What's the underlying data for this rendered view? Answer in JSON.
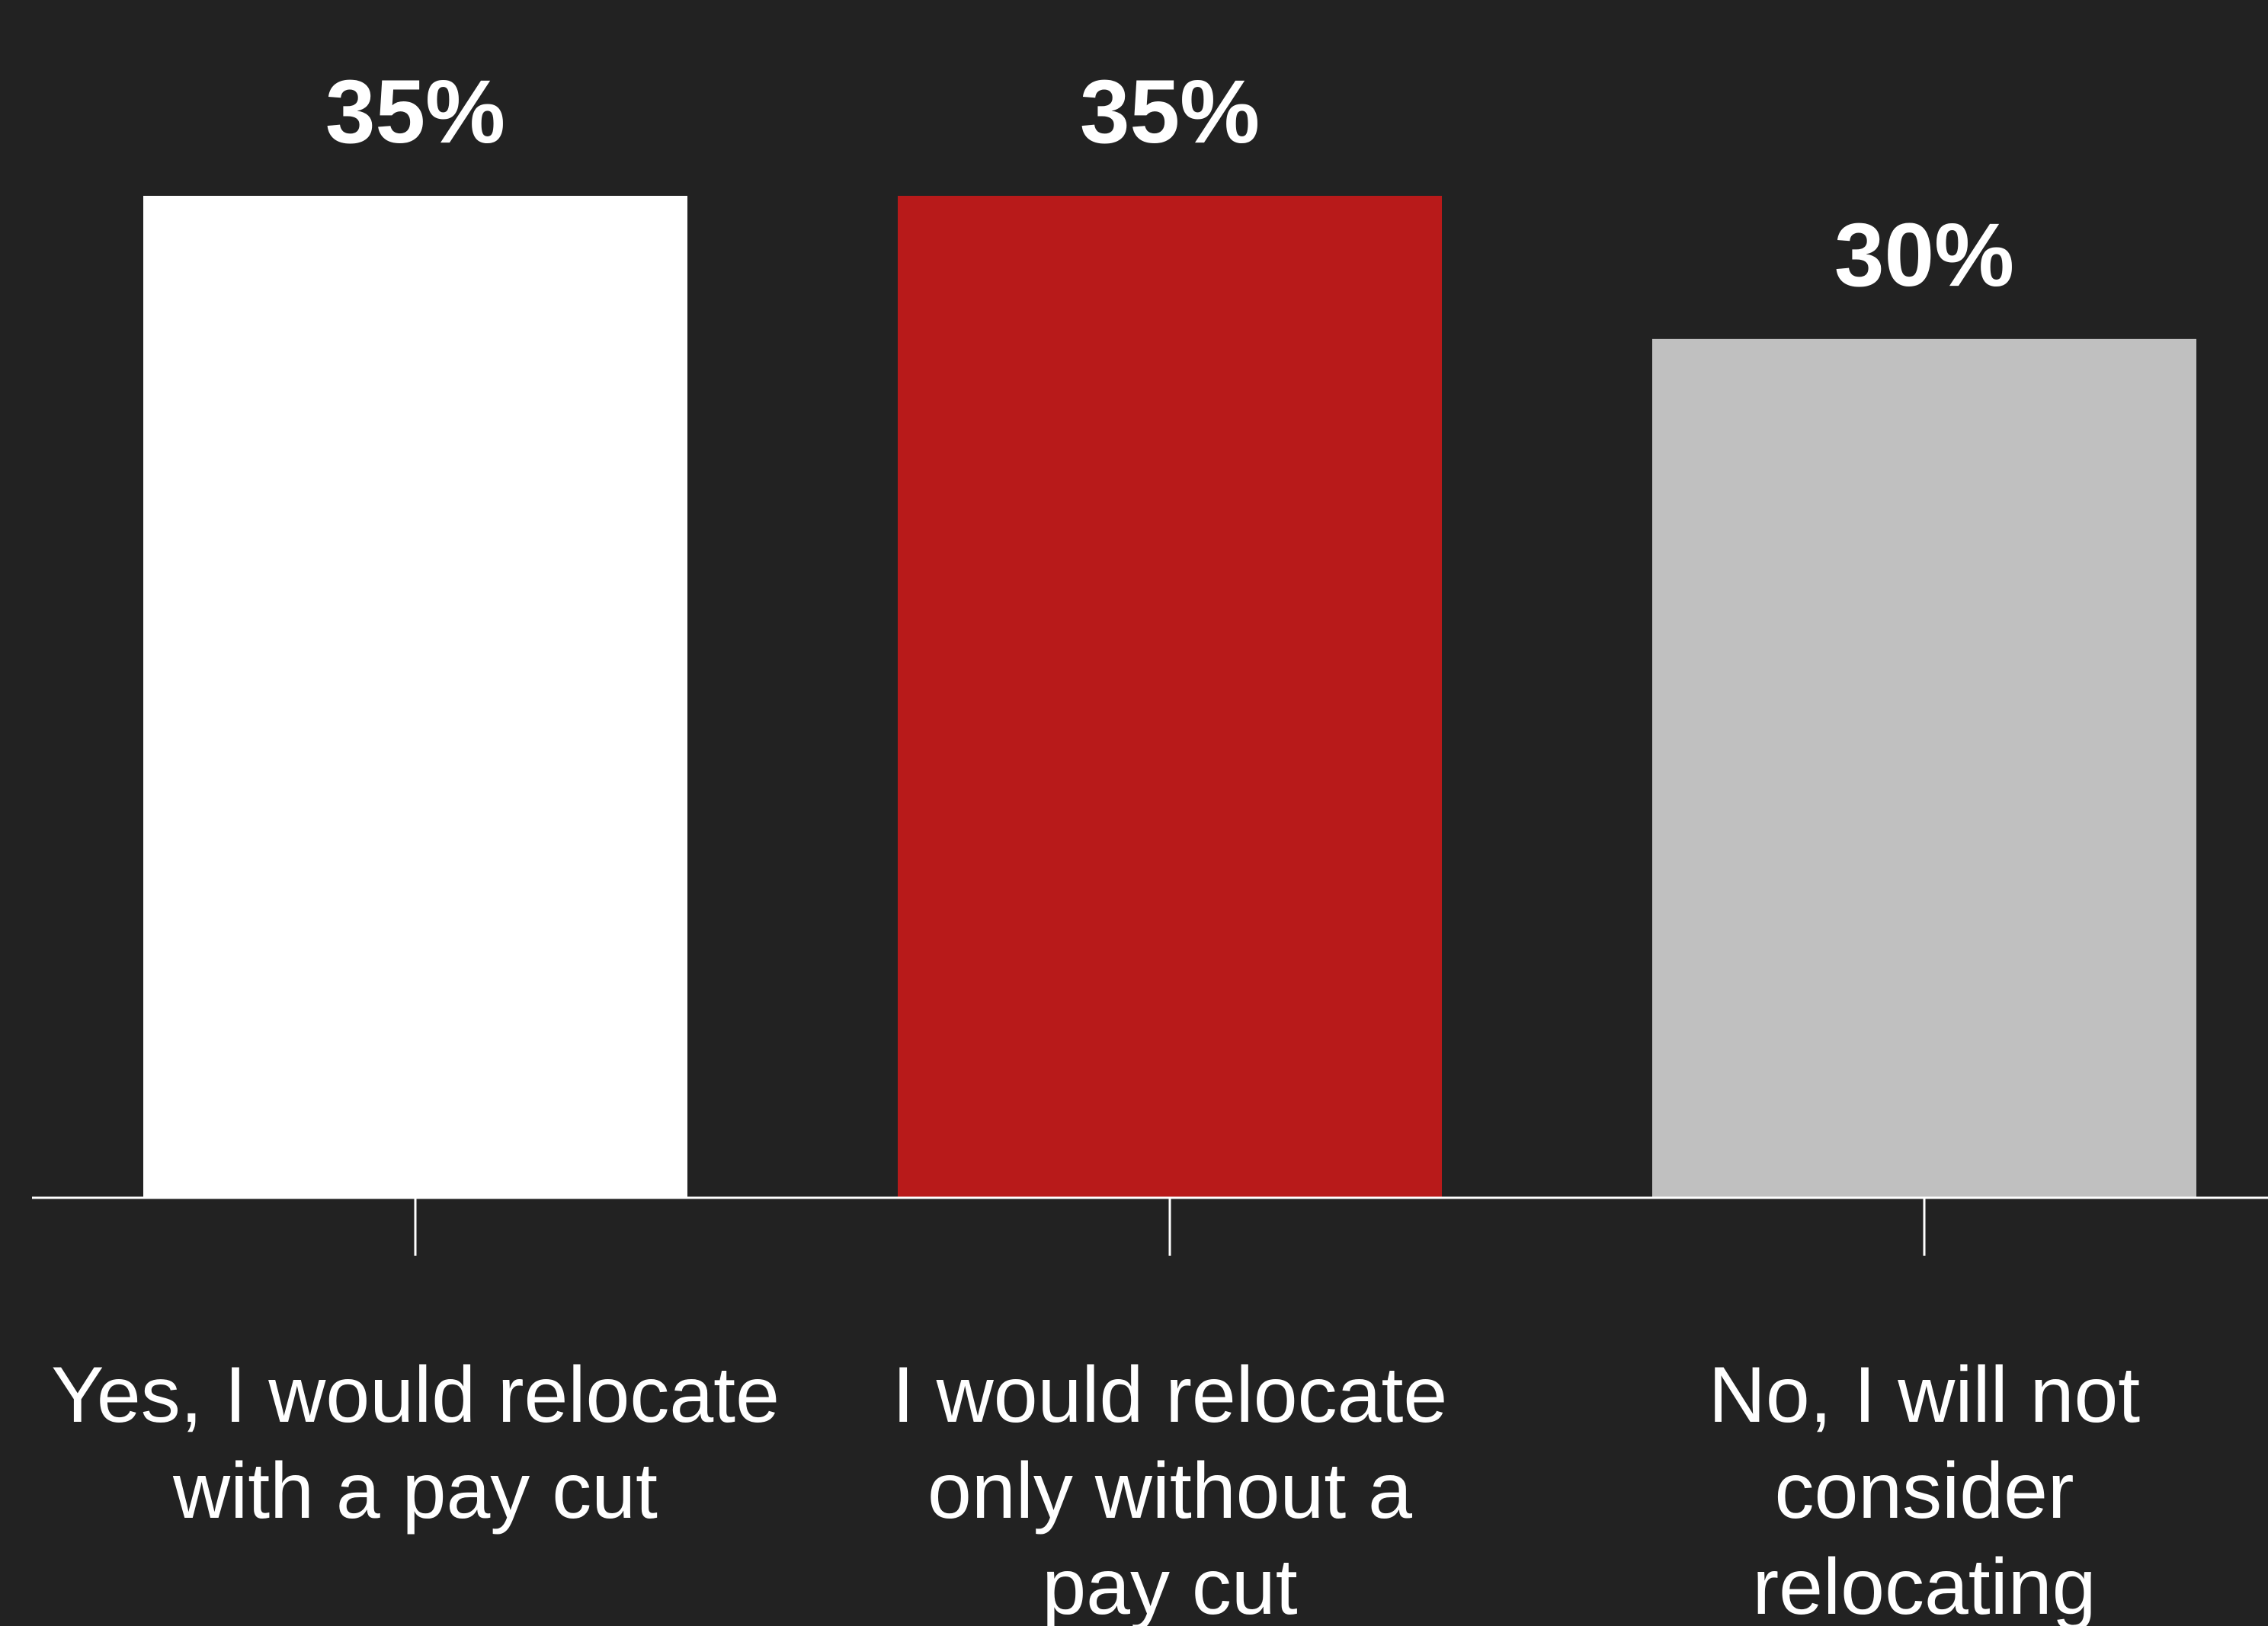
{
  "chart_data": {
    "type": "bar",
    "categories": [
      "Yes, I would relocate with a pay cut",
      "I would relocate only without a pay cut",
      "No, I will not consider relocating"
    ],
    "category_lines": [
      [
        "Yes, I would relocate",
        "with a pay cut"
      ],
      [
        "I would relocate",
        "only without a",
        "pay cut"
      ],
      [
        "No, I will not",
        "consider",
        "relocating"
      ]
    ],
    "values": [
      35,
      35,
      30
    ],
    "data_labels": [
      "35%",
      "35%",
      "30%"
    ],
    "value_unit": "%",
    "ylim": [
      0,
      35
    ],
    "grid": false,
    "legend": "none",
    "title": "",
    "xlabel": "",
    "ylabel": ""
  },
  "colors": {
    "background": "#222222",
    "bars": [
      "#ffffff",
      "#b81a1a",
      "#c0c0c0"
    ],
    "text": "#ffffff",
    "axis": "#ffffff"
  }
}
